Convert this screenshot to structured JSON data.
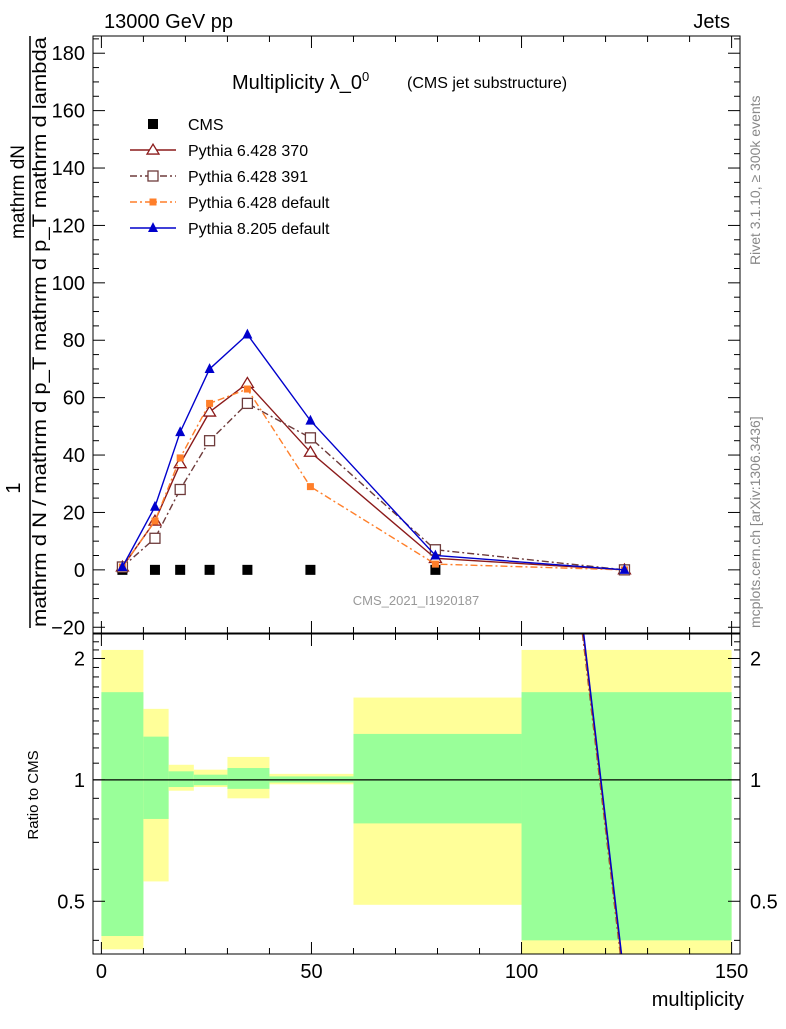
{
  "header": {
    "left": "13000 GeV pp",
    "right": "Jets",
    "side_top": "Rivet 3.1.10, ≥ 300k events",
    "side_bottom": "mcplots.cern.ch [arXiv:1306.3436]"
  },
  "chart_data": [
    {
      "type": "line",
      "title": "Multiplicity λ_0",
      "title_sup": "0",
      "subtitle": "(CMS jet substructure)",
      "watermark": "CMS_2021_I1920187",
      "ylabel_top": "1",
      "ylabel_numerator": "mathrm dN",
      "ylabel_denominator": "mathrm d N / mathrm d p_T mathrm d p_T mathrm d lambda",
      "xlim": [
        -2,
        152
      ],
      "ylim": [
        -22,
        186
      ],
      "yticks": [
        -20,
        0,
        20,
        40,
        60,
        80,
        100,
        120,
        140,
        160,
        180
      ],
      "series": [
        {
          "name": "CMS",
          "color": "#000000",
          "marker": "filled-square",
          "line": "none",
          "x": [
            5,
            12.75,
            18.75,
            25.75,
            34.75,
            49.75,
            79.5,
            124.5
          ],
          "y": [
            0,
            0,
            0,
            0,
            0,
            0,
            0,
            0
          ]
        },
        {
          "name": "Pythia 6.428 370",
          "color": "#8b1a1a",
          "marker": "open-triangle",
          "line": "solid",
          "x": [
            5,
            12.75,
            18.75,
            25.75,
            34.75,
            49.75,
            79.5,
            124.5
          ],
          "y": [
            1,
            17,
            37,
            55,
            65,
            41,
            4,
            0
          ]
        },
        {
          "name": "Pythia 6.428 391",
          "color": "#6e3b3b",
          "marker": "open-square",
          "line": "dash-dot",
          "x": [
            5,
            12.75,
            18.75,
            25.75,
            34.75,
            49.75,
            79.5,
            124.5
          ],
          "y": [
            1,
            11,
            28,
            45,
            58,
            46,
            7,
            0
          ]
        },
        {
          "name": "Pythia 6.428 default",
          "color": "#ff7f2a",
          "marker": "filled-square",
          "line": "dash-dot",
          "x": [
            5,
            12.75,
            18.75,
            25.75,
            34.75,
            49.75,
            79.5,
            124.5
          ],
          "y": [
            1,
            17,
            39,
            58,
            63,
            29,
            2,
            0
          ]
        },
        {
          "name": "Pythia 8.205 default",
          "color": "#0000cc",
          "marker": "filled-triangle",
          "line": "solid",
          "x": [
            5,
            12.75,
            18.75,
            25.75,
            34.75,
            49.75,
            79.5,
            124.5
          ],
          "y": [
            1,
            22,
            48,
            70,
            82,
            52,
            5,
            0
          ]
        }
      ]
    },
    {
      "type": "area",
      "xlabel": "multiplicity",
      "ylabel": "Ratio to CMS",
      "xlim": [
        -2,
        152
      ],
      "xticks": [
        0,
        50,
        100,
        150
      ],
      "yscale": "log",
      "ylim": [
        0.37,
        2.3
      ],
      "yticks": [
        0.5,
        1,
        2
      ],
      "reference_line": 1,
      "bands": [
        {
          "x_from": 0,
          "x_to": 10,
          "yellow": [
            0.38,
            2.1
          ],
          "green": [
            0.41,
            1.65
          ]
        },
        {
          "x_from": 10,
          "x_to": 16,
          "yellow": [
            0.56,
            1.5
          ],
          "green": [
            0.8,
            1.28
          ]
        },
        {
          "x_from": 16,
          "x_to": 22,
          "yellow": [
            0.94,
            1.09
          ],
          "green": [
            0.96,
            1.05
          ]
        },
        {
          "x_from": 22,
          "x_to": 30,
          "yellow": [
            0.96,
            1.06
          ],
          "green": [
            0.97,
            1.03
          ]
        },
        {
          "x_from": 30,
          "x_to": 40,
          "yellow": [
            0.9,
            1.14
          ],
          "green": [
            0.95,
            1.07
          ]
        },
        {
          "x_from": 40,
          "x_to": 60,
          "yellow": [
            0.975,
            1.035
          ],
          "green": [
            0.985,
            1.02
          ]
        },
        {
          "x_from": 60,
          "x_to": 100,
          "yellow": [
            0.49,
            1.6
          ],
          "green": [
            0.78,
            1.3
          ]
        },
        {
          "x_from": 100,
          "x_to": 150,
          "yellow": [
            0.37,
            2.1
          ],
          "green": [
            0.4,
            1.65
          ]
        }
      ],
      "series": [
        {
          "name": "Pythia 6.428 391",
          "color": "#6e3b3b",
          "line": "dash-dot",
          "x": [
            114.5,
            123.5
          ],
          "y": [
            2.3,
            0.37
          ]
        },
        {
          "name": "Pythia 6.428 default",
          "color": "#ff7f2a",
          "line": "dash-dot",
          "x": [
            114.6,
            123.6
          ],
          "y": [
            2.3,
            0.37
          ]
        },
        {
          "name": "Pythia 6.428 370",
          "color": "#8b1a1a",
          "line": "solid",
          "x": [
            114.7,
            123.7
          ],
          "y": [
            2.3,
            0.37
          ]
        },
        {
          "name": "Pythia 8.205 default",
          "color": "#0000cc",
          "line": "solid",
          "x": [
            114.8,
            123.8
          ],
          "y": [
            2.3,
            0.37
          ]
        }
      ]
    }
  ]
}
